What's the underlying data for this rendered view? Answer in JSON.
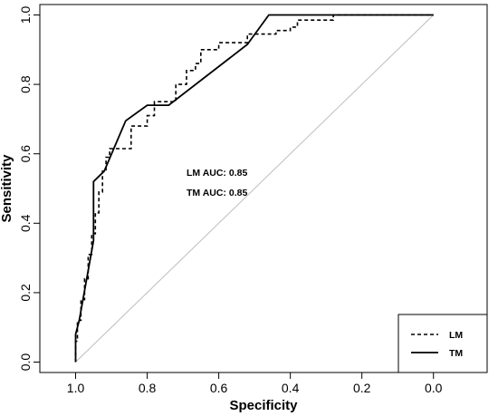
{
  "chart_data": {
    "type": "line",
    "title": "",
    "xlabel": "Specificity",
    "ylabel": "Sensitivity",
    "xlim": [
      1.1,
      -0.15
    ],
    "ylim": [
      -0.03,
      1.03
    ],
    "x_reversed": true,
    "x_ticks": [
      1.0,
      0.8,
      0.6,
      0.4,
      0.2,
      0.0
    ],
    "x_tick_labels": [
      "1.0",
      "0.8",
      "0.6",
      "0.4",
      "0.2",
      "0.0"
    ],
    "y_ticks": [
      0.0,
      0.2,
      0.4,
      0.6,
      0.8,
      1.0
    ],
    "y_tick_labels": [
      "0.0",
      "0.2",
      "0.4",
      "0.6",
      "0.8",
      "1.0"
    ],
    "grid": false,
    "legend_position": "bottom-right",
    "reference_line": {
      "from": [
        1.0,
        0.0
      ],
      "to": [
        0.0,
        1.0
      ],
      "color": "#bdbdbd"
    },
    "annotations": [
      "LM AUC: 0.85",
      "TM AUC: 0.85"
    ],
    "series": [
      {
        "name": "LM",
        "line_style": "dashed",
        "color": "#000000",
        "x": [
          1.0,
          1.0,
          0.995,
          0.995,
          0.985,
          0.985,
          0.975,
          0.975,
          0.965,
          0.965,
          0.955,
          0.955,
          0.945,
          0.945,
          0.935,
          0.935,
          0.925,
          0.925,
          0.915,
          0.915,
          0.905,
          0.905,
          0.87,
          0.87,
          0.845,
          0.845,
          0.8,
          0.8,
          0.78,
          0.78,
          0.76,
          0.76,
          0.72,
          0.72,
          0.69,
          0.69,
          0.665,
          0.665,
          0.65,
          0.65,
          0.6,
          0.6,
          0.52,
          0.52,
          0.44,
          0.44,
          0.4,
          0.4,
          0.38,
          0.38,
          0.28,
          0.28,
          0.0
        ],
        "y": [
          0.0,
          0.06,
          0.06,
          0.12,
          0.12,
          0.18,
          0.18,
          0.24,
          0.24,
          0.31,
          0.31,
          0.37,
          0.37,
          0.43,
          0.43,
          0.49,
          0.49,
          0.55,
          0.55,
          0.59,
          0.59,
          0.615,
          0.615,
          0.615,
          0.615,
          0.68,
          0.68,
          0.71,
          0.71,
          0.75,
          0.75,
          0.75,
          0.75,
          0.8,
          0.8,
          0.84,
          0.84,
          0.86,
          0.86,
          0.9,
          0.9,
          0.92,
          0.92,
          0.945,
          0.945,
          0.955,
          0.955,
          0.965,
          0.965,
          0.985,
          0.985,
          1.0,
          1.0
        ]
      },
      {
        "name": "TM",
        "line_style": "solid",
        "color": "#000000",
        "x": [
          1.0,
          1.0,
          0.99,
          0.95,
          0.95,
          0.92,
          0.86,
          0.8,
          0.74,
          0.52,
          0.46,
          0.0
        ],
        "y": [
          0.0,
          0.08,
          0.12,
          0.35,
          0.52,
          0.55,
          0.695,
          0.74,
          0.74,
          0.915,
          1.0,
          1.0
        ]
      }
    ]
  }
}
